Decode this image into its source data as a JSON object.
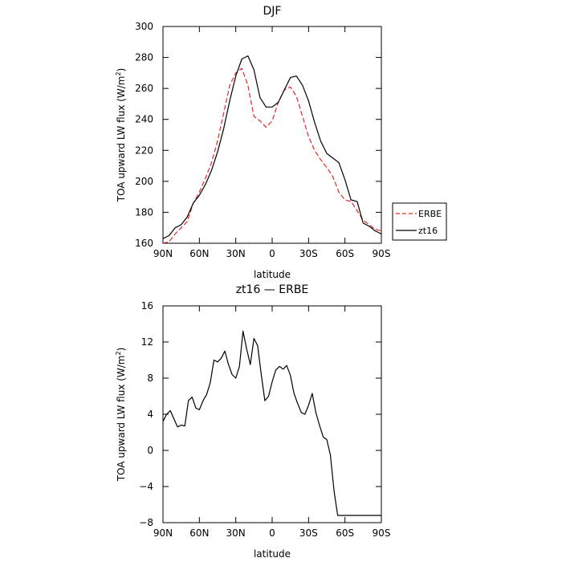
{
  "chart_data": [
    {
      "type": "line",
      "title": "DJF",
      "xlabel": "latitude",
      "ylabel": "TOA upward LW flux (W/m²)",
      "ylabel_main": "TOA upward LW flux (W/m",
      "ylabel_sup": "2",
      "ylabel_close": ")",
      "xlim": [
        90,
        -90
      ],
      "ylim": [
        160,
        300
      ],
      "x_ticks": [
        90,
        60,
        30,
        0,
        -30,
        -60,
        -90
      ],
      "x_tick_labels": [
        "90N",
        "60N",
        "30N",
        "0",
        "30S",
        "60S",
        "90S"
      ],
      "y_ticks": [
        160,
        180,
        200,
        220,
        240,
        260,
        280,
        300
      ],
      "y_tick_labels": [
        "160",
        "180",
        "200",
        "220",
        "240",
        "260",
        "280",
        "300"
      ],
      "grid": false,
      "legend": "right",
      "x": [
        90,
        85,
        80,
        75,
        70,
        65,
        60,
        55,
        50,
        45,
        40,
        35,
        30,
        25,
        20,
        15,
        10,
        5,
        0,
        -5,
        -10,
        -15,
        -20,
        -25,
        -30,
        -35,
        -40,
        -45,
        -50,
        -55,
        -60,
        -65,
        -70,
        -75,
        -80,
        -85,
        -90
      ],
      "series": [
        {
          "name": "ERBE",
          "color": "#e8251f",
          "dash": true,
          "values": [
            160,
            161,
            166,
            170,
            174,
            186,
            193,
            202,
            212,
            226,
            244,
            262,
            270,
            273,
            262,
            242,
            239,
            235,
            239,
            251,
            259,
            261,
            255,
            242,
            229,
            220,
            214,
            209,
            203,
            193,
            188,
            187,
            181,
            175,
            172,
            169,
            168
          ]
        },
        {
          "name": "zt16",
          "color": "#000000",
          "dash": false,
          "values": [
            163,
            165,
            170,
            172,
            177,
            186,
            191,
            198,
            207,
            219,
            234,
            252,
            268,
            279,
            281,
            272,
            254,
            248,
            248,
            251,
            259,
            267,
            268,
            262,
            252,
            238,
            226,
            218,
            215,
            212,
            201,
            188,
            187,
            173,
            171,
            168,
            166
          ]
        }
      ]
    },
    {
      "type": "line",
      "title": "zt16 — ERBE",
      "xlabel": "latitude",
      "ylabel": "TOA upward LW flux (W/m²)",
      "ylabel_main": "TOA upward LW flux (W/m",
      "ylabel_sup": "2",
      "ylabel_close": ")",
      "xlim": [
        90,
        -90
      ],
      "ylim": [
        -8,
        16
      ],
      "x_ticks": [
        90,
        60,
        30,
        0,
        -30,
        -60,
        -90
      ],
      "x_tick_labels": [
        "90N",
        "60N",
        "30N",
        "0",
        "30S",
        "60S",
        "90S"
      ],
      "y_ticks": [
        -8,
        -4,
        0,
        4,
        8,
        12,
        16
      ],
      "y_tick_labels": [
        "−8",
        "−4",
        "0",
        "4",
        "8",
        "12",
        "16"
      ],
      "grid": false,
      "x": [
        90,
        87,
        84,
        81,
        78,
        75,
        72,
        69,
        66,
        63,
        60,
        57,
        54,
        51,
        48,
        45,
        42,
        39,
        36,
        33,
        30,
        27,
        24,
        21,
        18,
        15,
        12,
        9,
        6,
        3,
        0,
        -3,
        -6,
        -9,
        -12,
        -15,
        -18,
        -21,
        -24,
        -27,
        -30,
        -33,
        -36,
        -39,
        -42,
        -45,
        -48,
        -51,
        -54,
        -57,
        -60,
        -63,
        -66,
        -69,
        -72,
        -75,
        -78,
        -81,
        -84,
        -87,
        -90
      ],
      "series": [
        {
          "name": "",
          "color": "#000000",
          "dash": false,
          "values": [
            3.2,
            4.0,
            4.4,
            3.5,
            2.6,
            2.8,
            2.7,
            5.5,
            5.9,
            4.7,
            4.5,
            5.5,
            6.2,
            7.5,
            10.0,
            9.8,
            10.2,
            11.0,
            9.5,
            8.4,
            8.0,
            9.3,
            13.2,
            11.2,
            9.5,
            12.4,
            11.6,
            8.4,
            5.5,
            6.0,
            7.6,
            8.9,
            9.3,
            9.0,
            9.4,
            8.3,
            6.3,
            5.2,
            4.2,
            4.0,
            5.0,
            6.3,
            4.2,
            2.8,
            1.5,
            1.2,
            -0.5,
            -4.5,
            -7.2,
            -7.2,
            -7.2,
            -7.2,
            -7.2,
            -7.2,
            -7.2,
            -7.2,
            -7.2,
            -7.2,
            -7.2,
            -7.2,
            -7.2
          ]
        }
      ]
    }
  ]
}
